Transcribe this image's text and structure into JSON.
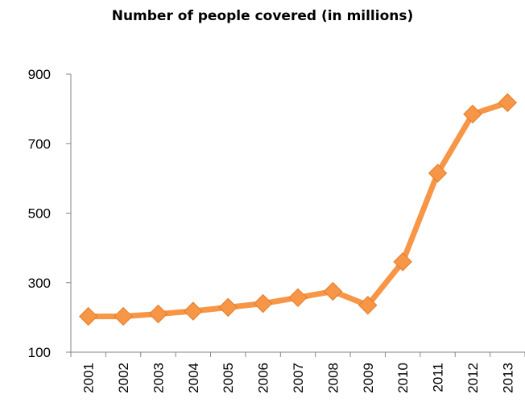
{
  "chart_data": {
    "type": "line",
    "title": "Number of people covered (in millions)",
    "xlabel": "",
    "ylabel": "",
    "x": [
      "2001",
      "2002",
      "2003",
      "2004",
      "2005",
      "2006",
      "2007",
      "2008",
      "2009",
      "2010",
      "2011",
      "2012",
      "2013"
    ],
    "series": [
      {
        "values": [
          203,
          203,
          210,
          218,
          229,
          240,
          257,
          275,
          235,
          360,
          615,
          785,
          818
        ]
      }
    ],
    "ylim": [
      100,
      900
    ],
    "yticks": [
      100,
      300,
      500,
      700,
      900
    ],
    "grid": false,
    "legend": "none",
    "line_color": "#F79646",
    "marker": "diamond"
  }
}
